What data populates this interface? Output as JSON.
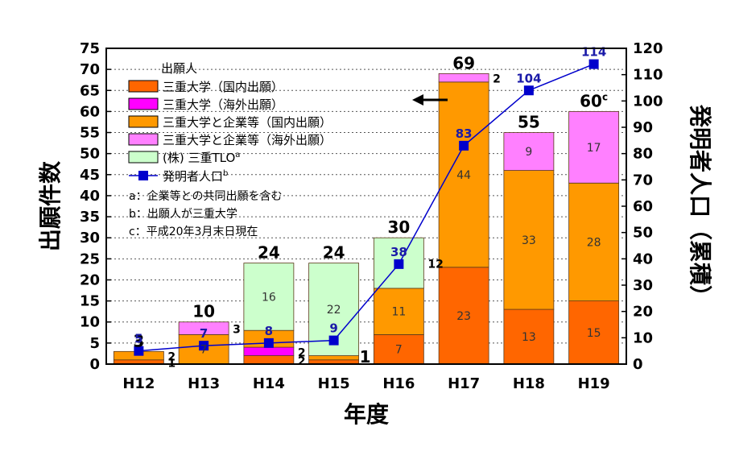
{
  "chart_data": {
    "type": "bar",
    "xlabel": "年度",
    "ylabel": "出願件数",
    "y2label": "発明者人口（累積）",
    "ylim": [
      0,
      75
    ],
    "y2lim": [
      0,
      120
    ],
    "yticks": [
      0,
      5,
      10,
      15,
      20,
      25,
      30,
      35,
      40,
      45,
      50,
      55,
      60,
      65,
      70,
      75
    ],
    "y2ticks": [
      0,
      10,
      20,
      30,
      40,
      50,
      60,
      70,
      80,
      90,
      100,
      110,
      120
    ],
    "grid": "horizontal dotted",
    "legend_title": "出願人",
    "legend_position": "top-left",
    "categories": [
      "H12",
      "H13",
      "H14",
      "H15",
      "H16",
      "H17",
      "H18",
      "H19"
    ],
    "series": [
      {
        "name": "三重大学（国内出願）",
        "color": "#ff6600",
        "values": [
          1,
          0,
          2,
          1,
          7,
          23,
          13,
          15
        ]
      },
      {
        "name": "三重大学（海外出願）",
        "color": "#ff00ff",
        "values": [
          0,
          0,
          2,
          0,
          0,
          0,
          0,
          0
        ]
      },
      {
        "name": "三重大学と企業等（国内出願）",
        "color": "#ff9900",
        "values": [
          2,
          7,
          4,
          1,
          11,
          44,
          33,
          28
        ]
      },
      {
        "name": "三重大学と企業等（海外出願）",
        "color": "#ff80ff",
        "values": [
          0,
          3,
          0,
          0,
          0,
          2,
          9,
          17
        ]
      },
      {
        "name": "(株) 三重TLO",
        "color": "#ccffcc",
        "values": [
          0,
          0,
          16,
          22,
          12,
          0,
          0,
          0
        ]
      }
    ],
    "segment_labels": [
      {
        "cat": 0,
        "text": "2",
        "pos": "side",
        "series": 2
      },
      {
        "cat": 0,
        "text": "1",
        "pos": "side",
        "series": 0
      },
      {
        "cat": 1,
        "text": "7",
        "pos": "inside",
        "series": 2
      },
      {
        "cat": 1,
        "text": "3",
        "pos": "side",
        "series": 3
      },
      {
        "cat": 2,
        "text": "16",
        "pos": "inside",
        "series": 4
      },
      {
        "cat": 2,
        "text": "2",
        "pos": "side",
        "series": 1
      },
      {
        "cat": 2,
        "text": "2",
        "pos": "side",
        "series": 0
      },
      {
        "cat": 3,
        "text": "22",
        "pos": "inside",
        "series": 4
      },
      {
        "cat": 4,
        "text": "7",
        "pos": "inside",
        "series": 0
      },
      {
        "cat": 4,
        "text": "11",
        "pos": "inside",
        "series": 2
      },
      {
        "cat": 4,
        "text": "12",
        "pos": "side",
        "series": 4
      },
      {
        "cat": 5,
        "text": "23",
        "pos": "inside",
        "series": 0
      },
      {
        "cat": 5,
        "text": "44",
        "pos": "inside",
        "series": 2
      },
      {
        "cat": 5,
        "text": "2",
        "pos": "side",
        "series": 3
      },
      {
        "cat": 6,
        "text": "13",
        "pos": "inside",
        "series": 0
      },
      {
        "cat": 6,
        "text": "33",
        "pos": "inside",
        "series": 2
      },
      {
        "cat": 6,
        "text": "9",
        "pos": "inside",
        "series": 3
      },
      {
        "cat": 7,
        "text": "15",
        "pos": "inside",
        "series": 0
      },
      {
        "cat": 7,
        "text": "28",
        "pos": "inside",
        "series": 2
      },
      {
        "cat": 7,
        "text": "17",
        "pos": "inside",
        "series": 3
      }
    ],
    "totals": [
      "3",
      "10",
      "24",
      "24",
      "30",
      "69",
      "55",
      "60"
    ],
    "total_suffix": {
      "7": "c"
    },
    "extra_marks": [
      {
        "cat": 3,
        "text": "1"
      }
    ],
    "line_series": {
      "name": "発明者人口",
      "name_suffix": "b",
      "color": "#0000cc",
      "values": [
        5,
        7,
        8,
        9,
        38,
        83,
        104,
        114
      ],
      "labels": [
        "5",
        "7",
        "8",
        "9",
        "38",
        "83",
        "104",
        "114"
      ]
    },
    "notes": [
      "a：企業等との共同出願を含む",
      "b：出願人が三重大学",
      "c：平成20年3月末日現在"
    ],
    "tlo_suffix": "a"
  }
}
